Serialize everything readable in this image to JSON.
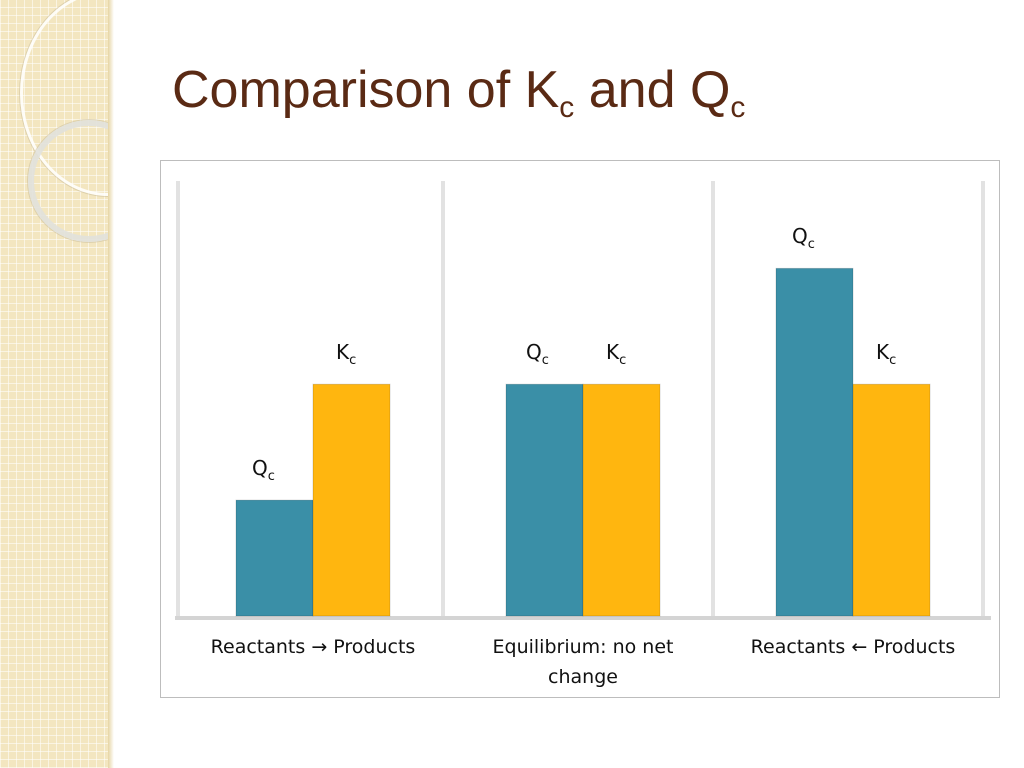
{
  "title": {
    "text": "Comparison of K",
    "sub1": "c",
    "mid": " and Q",
    "sub2": "c"
  },
  "chart_data": {
    "type": "bar",
    "categories": [
      "Reactants → Products",
      "Equilibrium: no net change",
      "Reactants ← Products"
    ],
    "series": [
      {
        "name": "Q",
        "name_sub": "c",
        "color": "#3a8fa7",
        "values": [
          1,
          2,
          3
        ]
      },
      {
        "name": "K",
        "name_sub": "c",
        "color": "#ffb60f",
        "values": [
          2,
          2,
          2
        ]
      }
    ],
    "ylim": [
      0,
      3.4
    ],
    "grid": false,
    "legend": "none"
  },
  "colors": {
    "title": "#5a2a14",
    "background_band": "#f3e6c0"
  }
}
